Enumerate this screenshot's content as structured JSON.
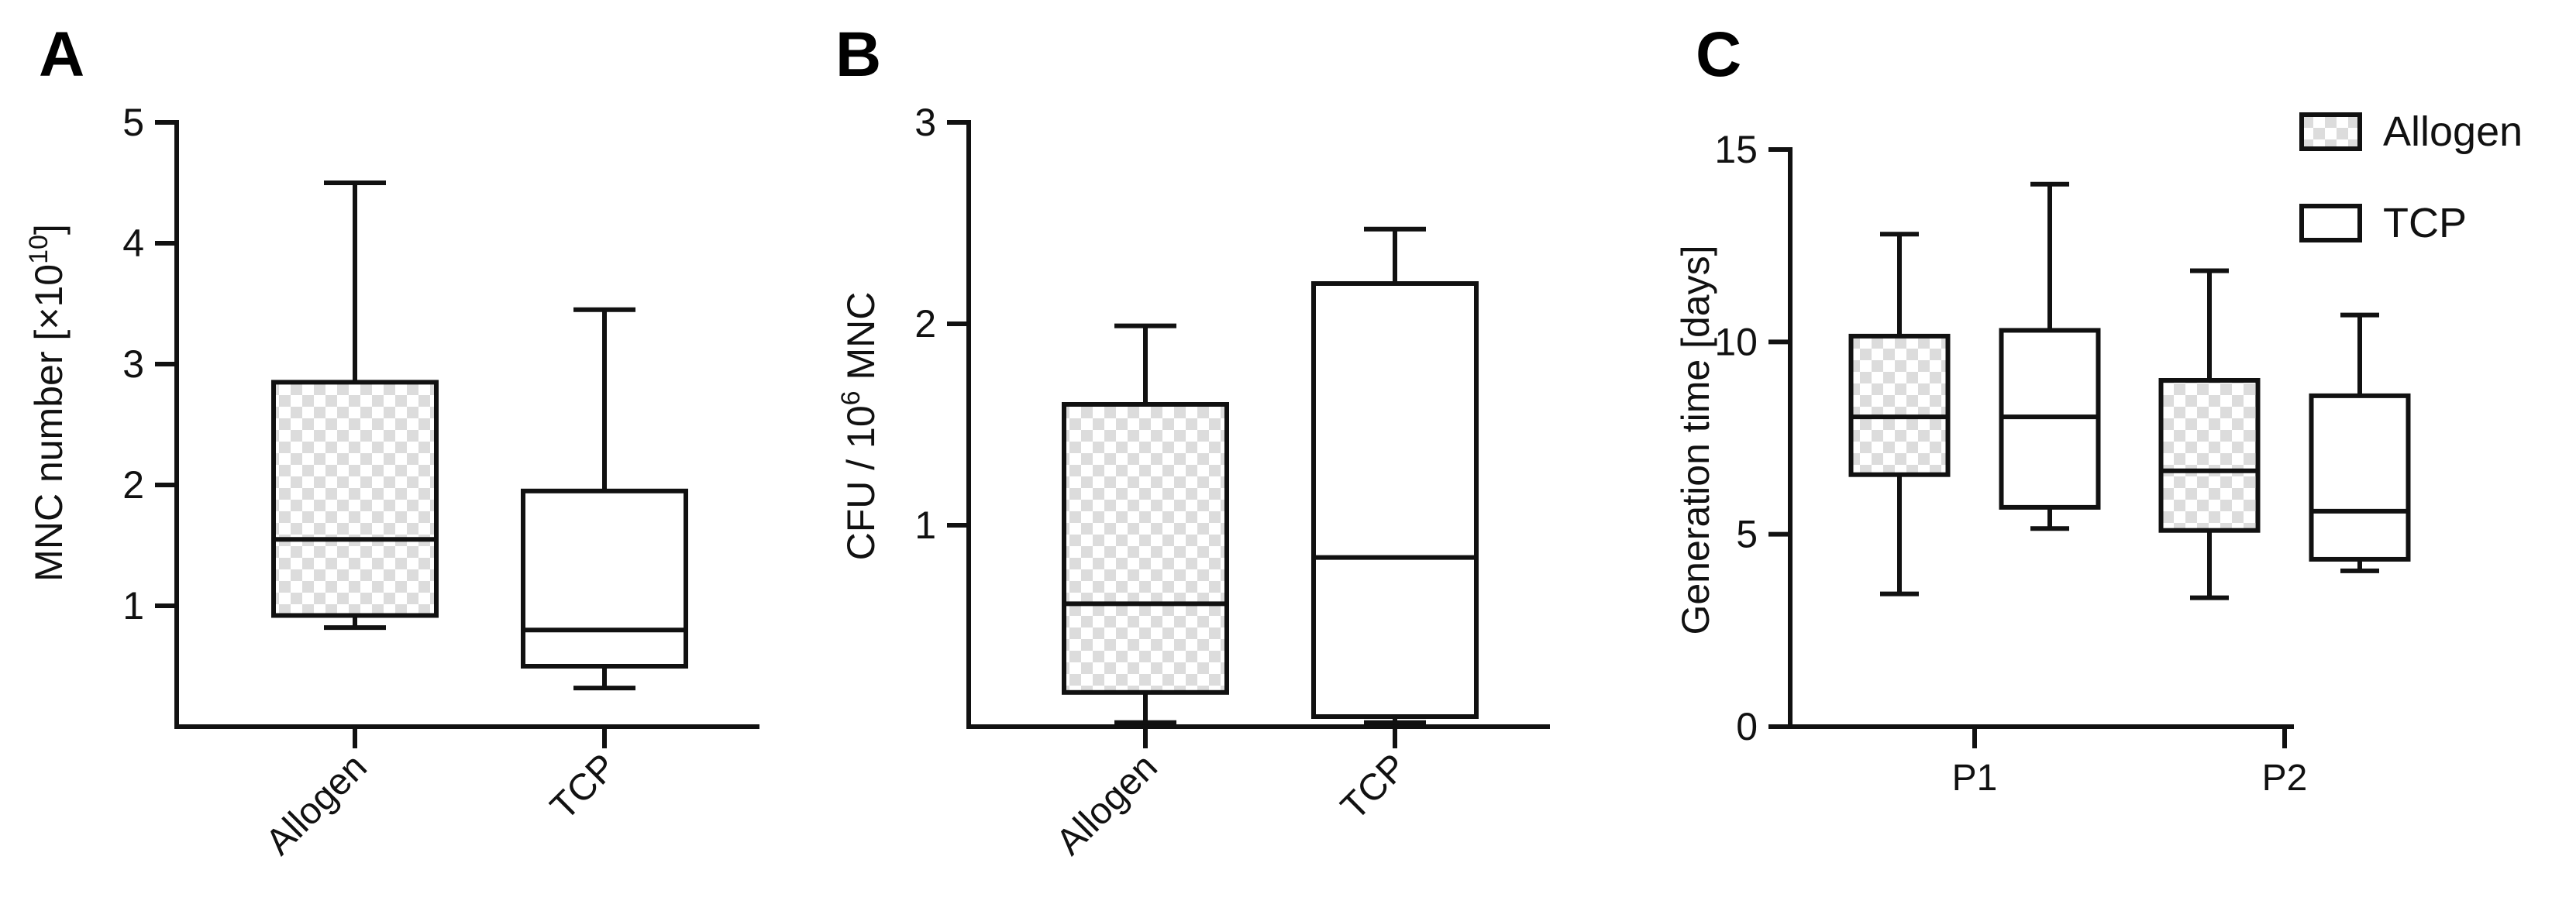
{
  "chart_data": [
    {
      "panel": "A",
      "type": "box",
      "ylabel_main": "MNC number [×10",
      "ylabel_sup": "10",
      "ylabel_end": "]",
      "ylim": [
        0,
        5
      ],
      "yticks": [
        1,
        2,
        3,
        4,
        5
      ],
      "categories": [
        "Allogen",
        "TCP"
      ],
      "boxes": [
        {
          "category": "Allogen",
          "pattern": "checker",
          "min": 0.82,
          "q1": 0.92,
          "median": 1.55,
          "q3": 2.85,
          "max": 4.5
        },
        {
          "category": "TCP",
          "pattern": "none",
          "min": 0.32,
          "q1": 0.5,
          "median": 0.8,
          "q3": 1.95,
          "max": 3.45
        }
      ]
    },
    {
      "panel": "B",
      "type": "box",
      "ylabel_main": "CFU / 10",
      "ylabel_sup": "6",
      "ylabel_end": " MNC",
      "ylim": [
        0,
        3
      ],
      "yticks": [
        1,
        2,
        3
      ],
      "categories": [
        "Allogen",
        "TCP"
      ],
      "boxes": [
        {
          "category": "Allogen",
          "pattern": "checker",
          "min": 0.02,
          "q1": 0.17,
          "median": 0.61,
          "q3": 1.6,
          "max": 1.99
        },
        {
          "category": "TCP",
          "pattern": "none",
          "min": 0.02,
          "q1": 0.05,
          "median": 0.84,
          "q3": 2.2,
          "max": 2.47
        }
      ]
    },
    {
      "panel": "C",
      "type": "box",
      "ylabel_main": "Generation time [days]",
      "ylim": [
        0,
        15
      ],
      "yticks": [
        0,
        5,
        10,
        15
      ],
      "categories": [
        "P1",
        "P2"
      ],
      "legend": {
        "position": "top-right",
        "entries": [
          {
            "name": "Allogen",
            "pattern": "checker"
          },
          {
            "name": "TCP",
            "pattern": "none"
          }
        ]
      },
      "boxes": [
        {
          "category": "P1",
          "series": "Allogen",
          "pattern": "checker",
          "min": 3.45,
          "q1": 6.55,
          "median": 8.05,
          "q3": 10.15,
          "max": 12.8
        },
        {
          "category": "P1",
          "series": "TCP",
          "pattern": "none",
          "min": 5.15,
          "q1": 5.7,
          "median": 8.05,
          "q3": 10.3,
          "max": 14.1
        },
        {
          "category": "P2",
          "series": "Allogen",
          "pattern": "checker",
          "min": 3.35,
          "q1": 5.1,
          "median": 6.65,
          "q3": 9.0,
          "max": 11.85
        },
        {
          "category": "P2",
          "series": "TCP",
          "pattern": "none",
          "min": 4.05,
          "q1": 4.35,
          "median": 5.6,
          "q3": 8.6,
          "max": 10.7
        }
      ]
    }
  ]
}
